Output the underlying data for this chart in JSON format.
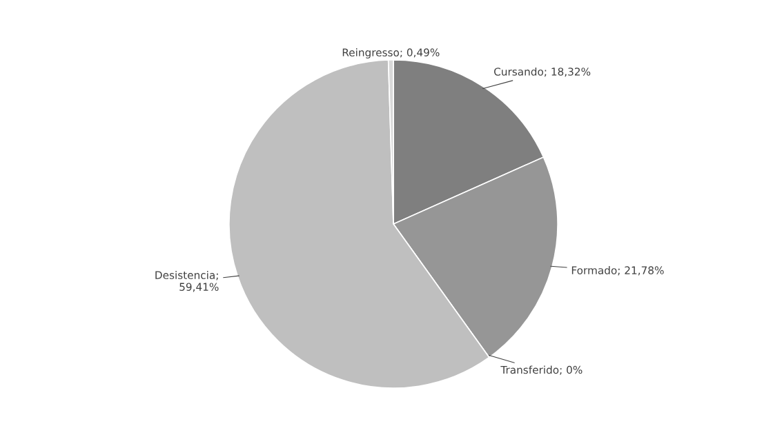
{
  "chart_data": {
    "type": "pie",
    "categories": [
      "Cursando",
      "Formado",
      "Transferido",
      "Desistencia",
      "Reingresso"
    ],
    "values": [
      18.32,
      21.78,
      0,
      59.41,
      0.49
    ],
    "colors": [
      "#7f7f7f",
      "#969696",
      "#a6a6a6",
      "#bfbfbf",
      "#d9d9d9"
    ],
    "value_labels": [
      "; 18,32%",
      "; 21,78%",
      "; 0%",
      ";\n59,41%",
      "; 0,49%"
    ]
  }
}
